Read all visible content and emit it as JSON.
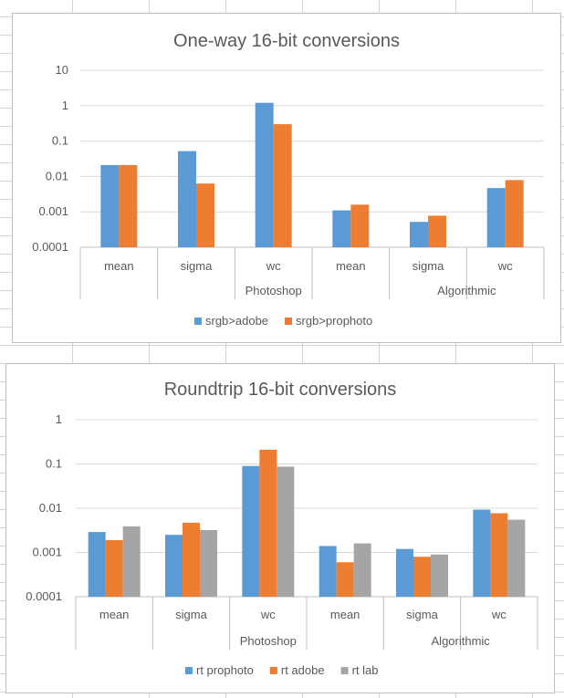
{
  "chart_data": [
    {
      "type": "bar",
      "title": "One-way 16-bit conversions",
      "yscale": "log",
      "ylim": [
        0.0001,
        10
      ],
      "yticks": [
        "10",
        "1",
        "0.1",
        "0.01",
        "0.001",
        "0.0001"
      ],
      "categories": [
        "mean",
        "sigma",
        "wc",
        "mean",
        "sigma",
        "wc"
      ],
      "groups": [
        {
          "label": "Photoshop",
          "span": [
            1,
            3
          ]
        },
        {
          "label": "Algorithmic",
          "span": [
            4,
            5
          ]
        }
      ],
      "series": [
        {
          "name": "srgb>adobe",
          "color": "#5B9BD5",
          "values": [
            0.021,
            0.052,
            1.2,
            0.0011,
            0.00052,
            0.0047
          ]
        },
        {
          "name": "srgb>prophoto",
          "color": "#ED7D31",
          "values": [
            0.021,
            0.0063,
            0.3,
            0.0016,
            0.00078,
            0.0079
          ]
        }
      ],
      "legend": "bottom",
      "grid": true
    },
    {
      "type": "bar",
      "title": "Roundtrip 16-bit conversions",
      "yscale": "log",
      "ylim": [
        0.0001,
        1
      ],
      "yticks": [
        "1",
        "0.1",
        "0.01",
        "0.001",
        "0.0001"
      ],
      "categories": [
        "mean",
        "sigma",
        "wc",
        "mean",
        "sigma",
        "wc"
      ],
      "groups": [
        {
          "label": "Photoshop",
          "span": [
            1,
            3
          ]
        },
        {
          "label": "Algorithmic",
          "span": [
            4,
            5
          ]
        }
      ],
      "series": [
        {
          "name": "rt prophoto",
          "color": "#5B9BD5",
          "values": [
            0.0029,
            0.0025,
            0.09,
            0.0014,
            0.0012,
            0.0093
          ]
        },
        {
          "name": "rt adobe",
          "color": "#ED7D31",
          "values": [
            0.0019,
            0.0047,
            0.21,
            0.0006,
            0.0008,
            0.0077
          ]
        },
        {
          "name": "rt lab",
          "color": "#A5A5A5",
          "values": [
            0.0039,
            0.0032,
            0.087,
            0.0016,
            0.0009,
            0.0055
          ]
        }
      ],
      "legend": "bottom",
      "grid": true
    }
  ]
}
